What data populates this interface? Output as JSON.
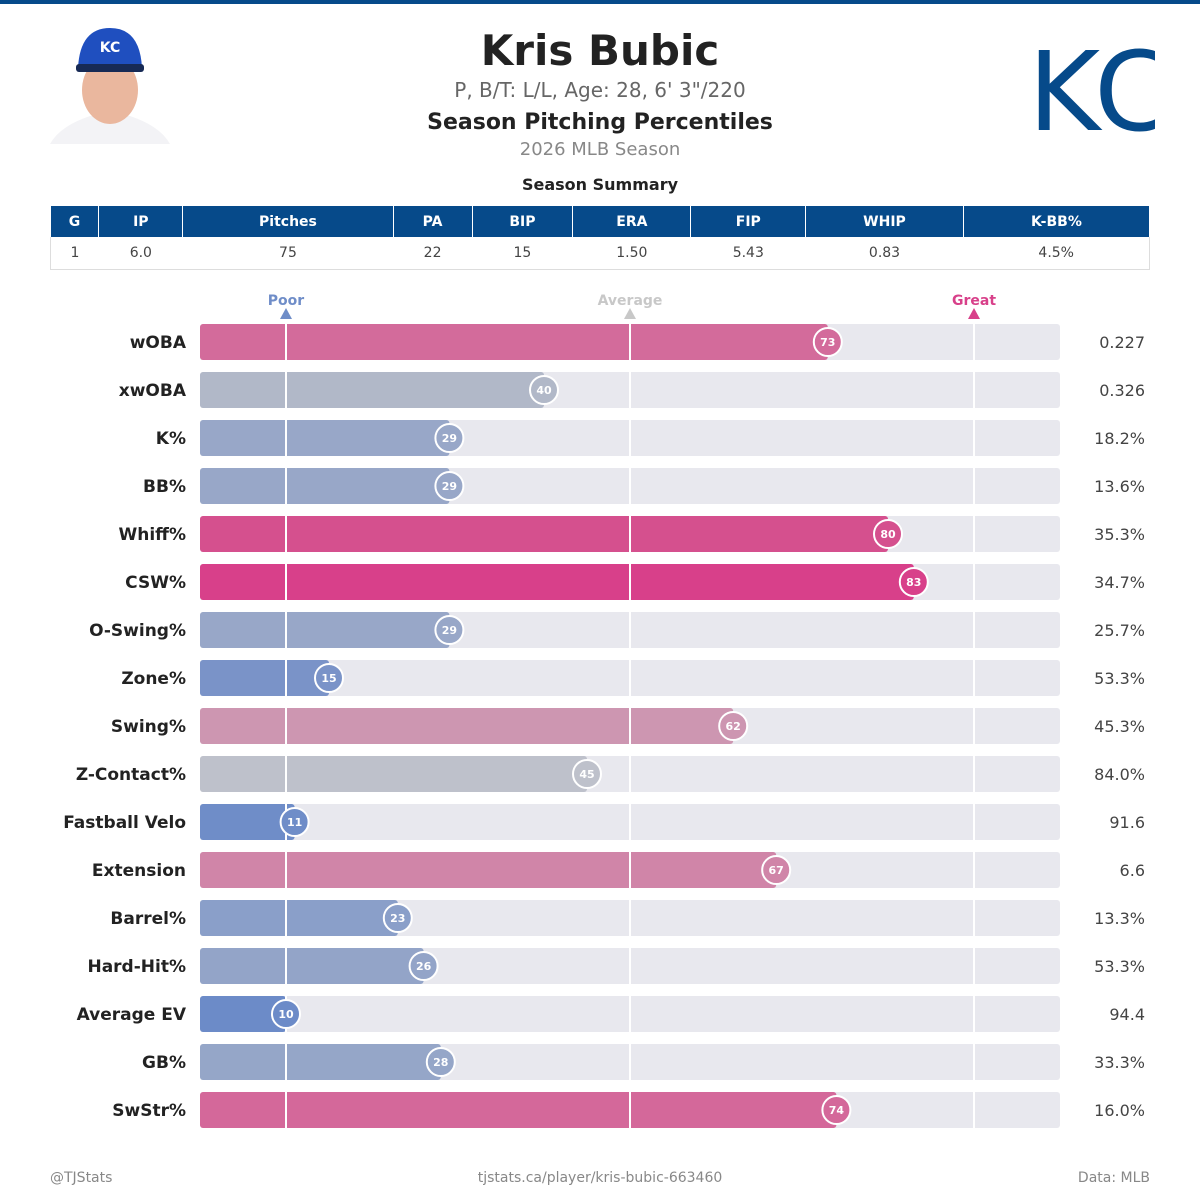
{
  "header": {
    "name": "Kris Bubic",
    "bio": "P, B/T: L/L, Age: 28, 6' 3\"/220",
    "subtitle": "Season Pitching Percentiles",
    "season": "2026 MLB Season",
    "logo_text": "KC"
  },
  "summary": {
    "title": "Season Summary",
    "columns": [
      "G",
      "IP",
      "Pitches",
      "PA",
      "BIP",
      "ERA",
      "FIP",
      "WHIP",
      "K-BB%"
    ],
    "values": [
      "1",
      "6.0",
      "75",
      "22",
      "15",
      "1.50",
      "5.43",
      "0.83",
      "4.5%"
    ]
  },
  "chart_data": {
    "type": "bar",
    "orientation": "horizontal",
    "xlim": [
      0,
      100
    ],
    "markers": [
      {
        "label": "Poor",
        "value": 10,
        "color": "#6f8dc8"
      },
      {
        "label": "Average",
        "value": 50,
        "color": "#c8c8c8"
      },
      {
        "label": "Great",
        "value": 90,
        "color": "#d8408a"
      }
    ],
    "categories": [
      "wOBA",
      "xwOBA",
      "K%",
      "BB%",
      "Whiff%",
      "CSW%",
      "O-Swing%",
      "Zone%",
      "Swing%",
      "Z-Contact%",
      "Fastball Velo",
      "Extension",
      "Barrel%",
      "Hard-Hit%",
      "Average EV",
      "GB%",
      "SwStr%"
    ],
    "percentiles": [
      73,
      40,
      29,
      29,
      80,
      83,
      29,
      15,
      62,
      45,
      11,
      67,
      23,
      26,
      10,
      28,
      74
    ],
    "stat_values": [
      "0.227",
      "0.326",
      "18.2%",
      "13.6%",
      "35.3%",
      "34.7%",
      "25.7%",
      "53.3%",
      "45.3%",
      "84.0%",
      "91.6",
      "6.6",
      "13.3%",
      "53.3%",
      "94.4",
      "33.3%",
      "16.0%"
    ],
    "colors": [
      "#d36b9b",
      "#b1b8c8",
      "#98a7c8",
      "#98a7c8",
      "#d5508e",
      "#d8408a",
      "#98a7c8",
      "#7a93c8",
      "#cd96b1",
      "#bec1cb",
      "#6f8dc8",
      "#d085a8",
      "#8a9fc9",
      "#93a4c8",
      "#6c8bc8",
      "#95a6c8",
      "#d4689a"
    ]
  },
  "footer": {
    "left": "@TJStats",
    "center": "tjstats.ca/player/kris-bubic-663460",
    "right": "Data: MLB"
  }
}
